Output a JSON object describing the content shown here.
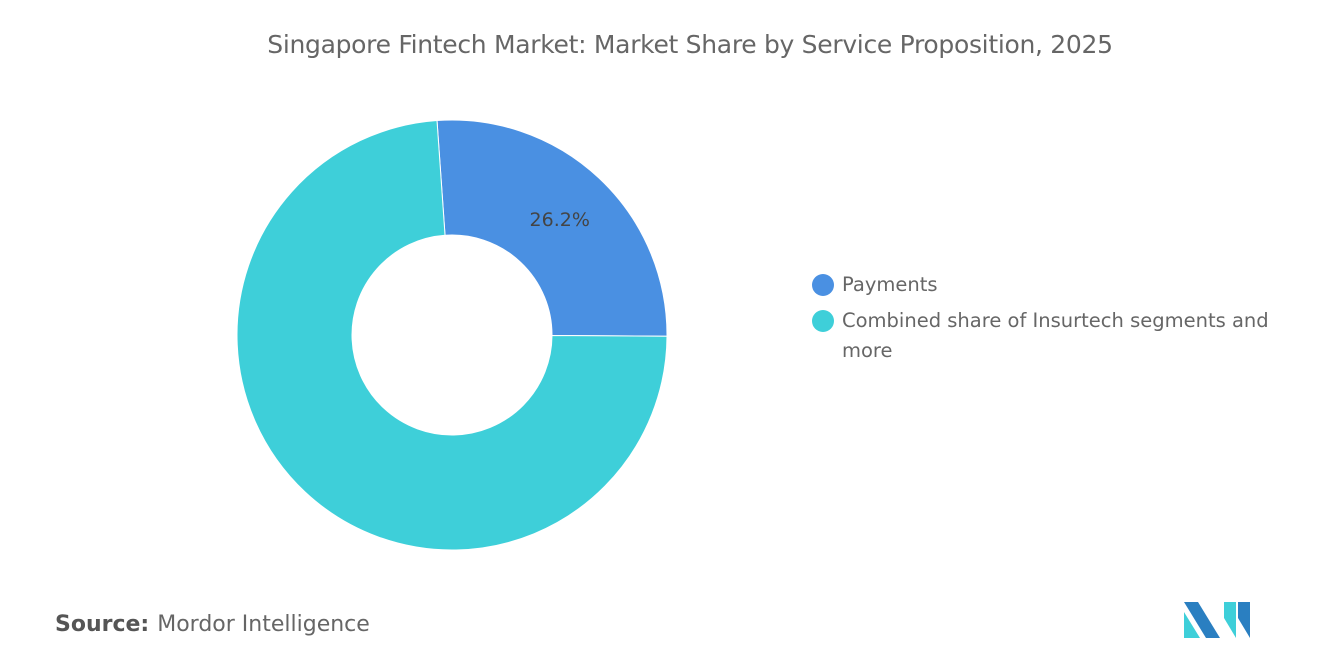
{
  "title": "Singapore Fintech Market: Market Share by Service Proposition, 2025",
  "chart_data": {
    "type": "pie",
    "style": "donut",
    "title": "Singapore Fintech Market: Market Share by Service Proposition, 2025",
    "series": [
      {
        "name": "Payments",
        "value": 26.2,
        "label": "26.2%",
        "color": "#4a90e2"
      },
      {
        "name": "Combined share of Insurtech segments and more",
        "value": 73.8,
        "label": "",
        "color": "#3ecfd9"
      }
    ],
    "legend_position": "right"
  },
  "source": {
    "label": "Source:",
    "value": "Mordor Intelligence"
  },
  "logo": {
    "text": "Mordor Intelligence",
    "colors": [
      "#2a7fc1",
      "#3ecfd9"
    ]
  }
}
